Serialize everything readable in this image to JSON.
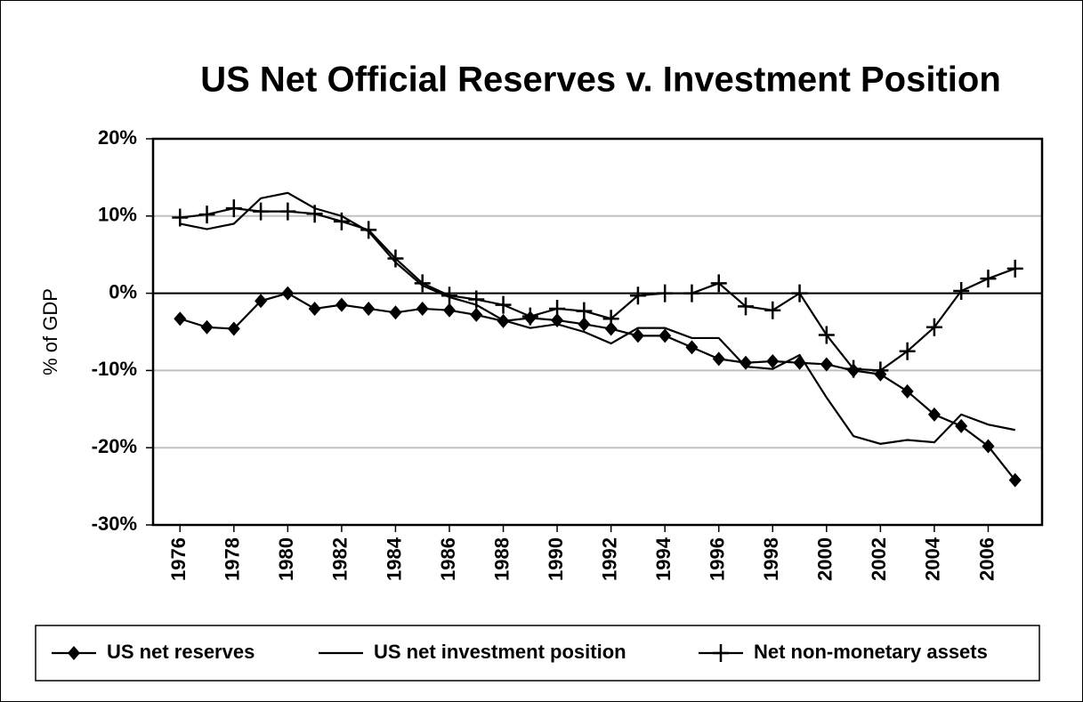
{
  "chart_data": {
    "type": "line",
    "title": "US Net Official Reserves v.  Investment Position",
    "y_label": "% of GDP",
    "x": [
      1976,
      1977,
      1978,
      1979,
      1980,
      1981,
      1982,
      1983,
      1984,
      1985,
      1986,
      1987,
      1988,
      1989,
      1990,
      1991,
      1992,
      1993,
      1994,
      1995,
      1996,
      1997,
      1998,
      1999,
      2000,
      2001,
      2002,
      2003,
      2004,
      2005,
      2006,
      2007
    ],
    "xlim": [
      1975,
      2008
    ],
    "xticks": [
      1976,
      1978,
      1980,
      1982,
      1984,
      1986,
      1988,
      1990,
      1992,
      1994,
      1996,
      1998,
      2000,
      2002,
      2004,
      2006
    ],
    "ylim": [
      -30,
      20
    ],
    "yticks": [
      {
        "value": -30,
        "label": "-30%"
      },
      {
        "value": -20,
        "label": "-20%"
      },
      {
        "value": -10,
        "label": "-10%"
      },
      {
        "value": 0,
        "label": "0%"
      },
      {
        "value": 10,
        "label": "10%"
      },
      {
        "value": 20,
        "label": "20%"
      }
    ],
    "grid": true,
    "legend": "bottom",
    "series": [
      {
        "name": "US net reserves",
        "color": "#000000",
        "marker": "diamond",
        "values": [
          -3.3,
          -4.4,
          -4.6,
          -1,
          0,
          -2,
          -1.5,
          -2,
          -2.5,
          -2,
          -2.2,
          -2.8,
          -3.6,
          -3.2,
          -3.5,
          -4,
          -4.6,
          -5.5,
          -5.5,
          -7,
          -8.5,
          -9,
          -8.8,
          -9,
          -9.2,
          -10,
          -10.5,
          -12.7,
          -15.7,
          -17.2,
          -19.8,
          -24.2
        ]
      },
      {
        "name": "US net investment position",
        "color": "#000000",
        "marker": "none",
        "values": [
          9,
          8.3,
          9,
          12.3,
          13,
          11,
          10,
          8,
          4,
          1,
          -0.5,
          -1.5,
          -3.5,
          -4.5,
          -4,
          -5,
          -6.5,
          -4.5,
          -4.5,
          -5.8,
          -5.8,
          -9.5,
          -9.8,
          -8,
          -13.5,
          -18.5,
          -19.5,
          -19,
          -19.3,
          -15.7,
          -17,
          -17.7
        ]
      },
      {
        "name": "Net non-monetary assets",
        "color": "#000000",
        "marker": "plus",
        "values": [
          9.8,
          10.2,
          11,
          10.6,
          10.6,
          10.3,
          9.3,
          8.2,
          4.5,
          1.3,
          -0.3,
          -0.8,
          -1.5,
          -3,
          -2,
          -2.3,
          -3.3,
          -0.3,
          0,
          0,
          1.3,
          -1.7,
          -2.2,
          0,
          -5.4,
          -9.8,
          -10,
          -7.5,
          -4.4,
          0.3,
          1.9,
          3.2
        ]
      }
    ]
  }
}
